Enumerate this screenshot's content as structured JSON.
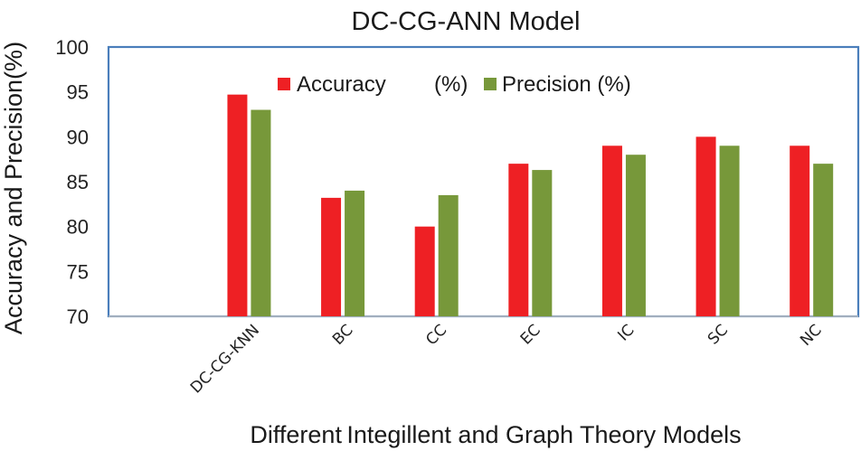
{
  "chart_data": {
    "type": "bar",
    "title": "DC-CG-ANN Model",
    "xlabel": "Different Integillent and Graph Theory Models",
    "ylabel": "Accuracy and Precision(%)",
    "ylim": [
      70,
      100
    ],
    "yticks": [
      70,
      75,
      80,
      85,
      90,
      95,
      100
    ],
    "categories": [
      "",
      "DC-CG-KNN",
      "BC",
      "CC",
      "EC",
      "IC",
      "SC",
      "NC"
    ],
    "series": [
      {
        "name": "Accuracy        (%)",
        "color": "#ee2024",
        "values": [
          null,
          94.7,
          83.2,
          80.0,
          87.0,
          89.0,
          90.0,
          89.0
        ]
      },
      {
        "name": "Precision (%)",
        "color": "#77983a",
        "values": [
          null,
          93.0,
          84.0,
          83.5,
          86.3,
          88.0,
          89.0,
          87.0
        ]
      }
    ],
    "legend": "top",
    "grid": false,
    "frame_color": "#4a7ebb"
  }
}
